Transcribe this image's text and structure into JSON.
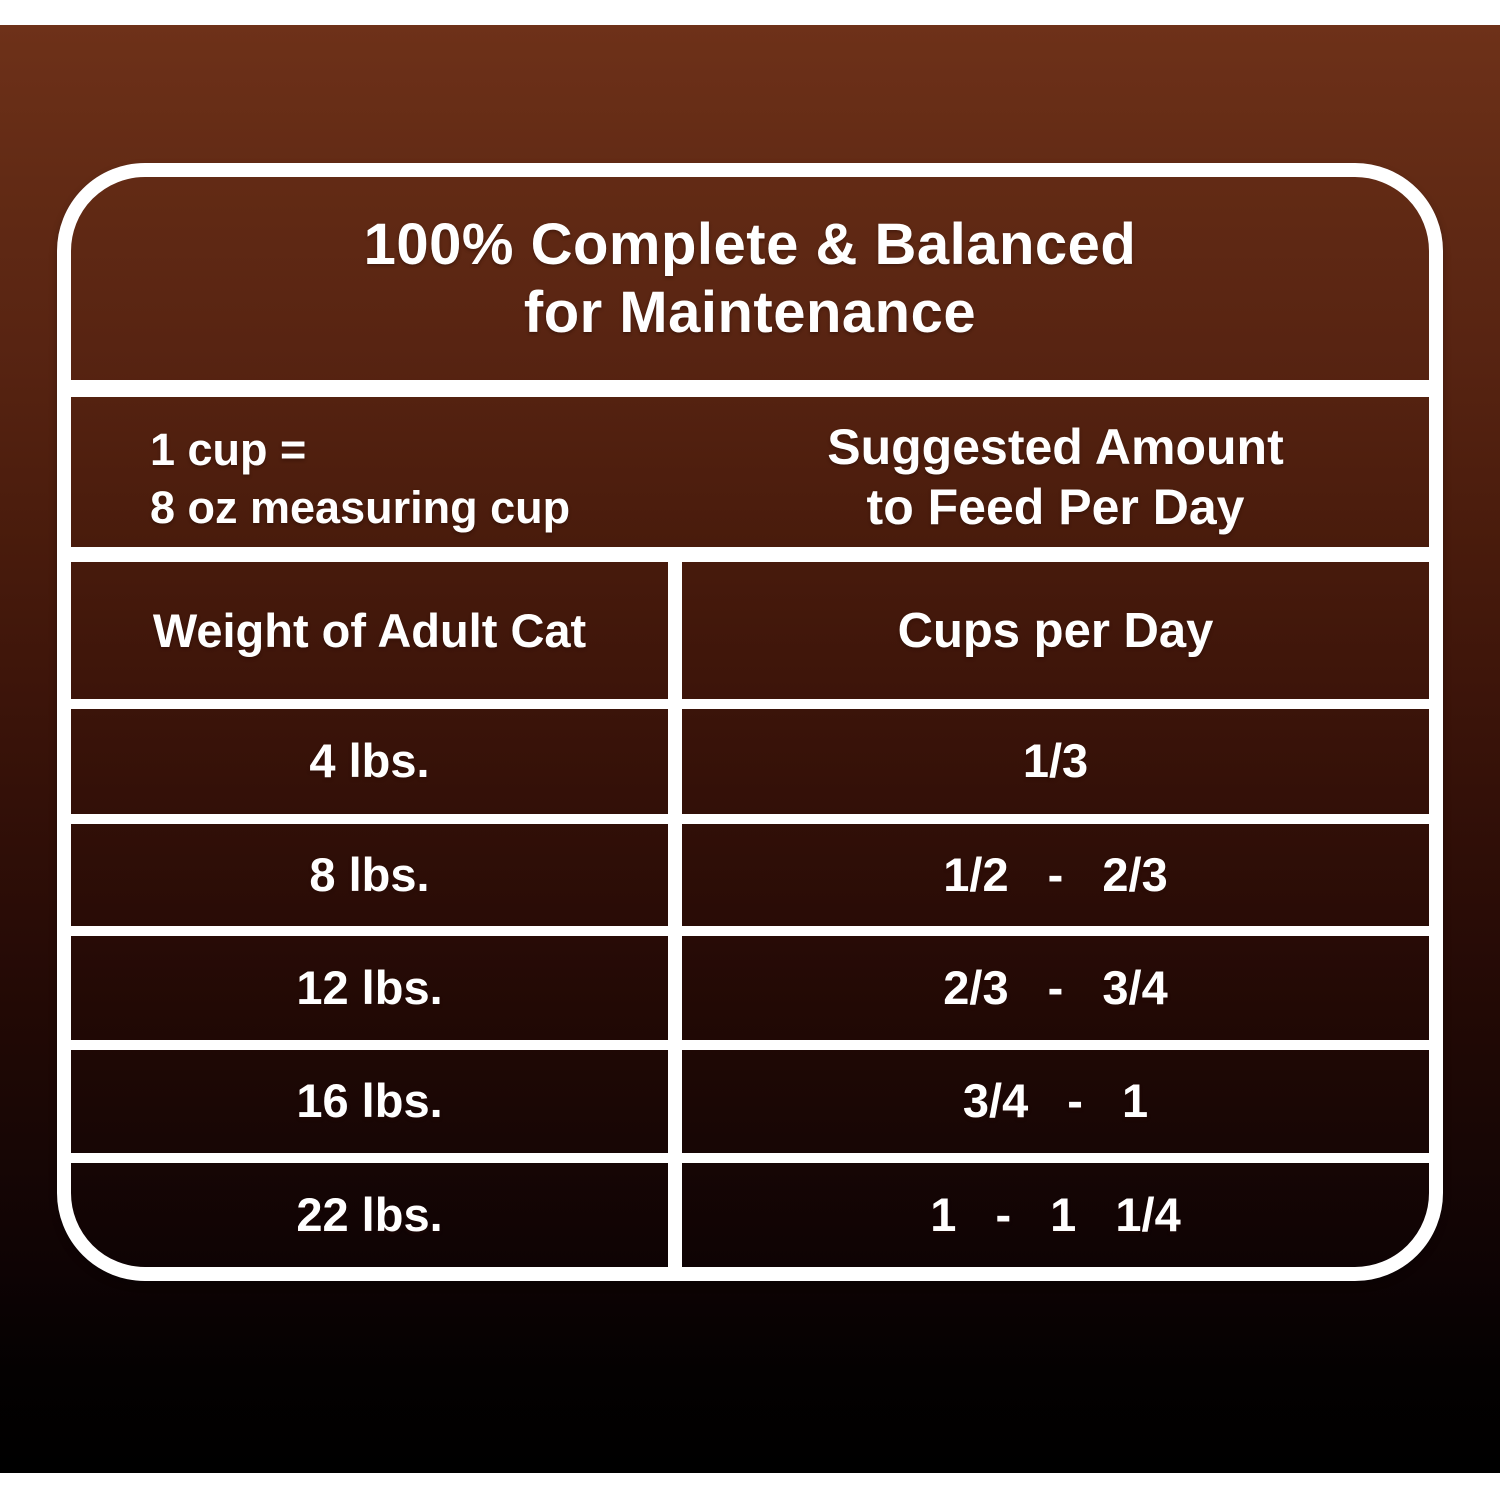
{
  "label": {
    "title": {
      "line1": "100% Complete & Balanced",
      "line2": "for Maintenance"
    },
    "cup_note": {
      "line1": "1 cup =",
      "line2": "8 oz measuring cup"
    },
    "suggested": {
      "line1": "Suggested Amount",
      "line2": "to Feed Per Day"
    },
    "columns": {
      "weight": "Weight of Adult Cat",
      "cups": "Cups per Day"
    },
    "rows": [
      {
        "weight": "4 lbs.",
        "cups": "1/3"
      },
      {
        "weight": "8 lbs.",
        "cups": "1/2 - 2/3"
      },
      {
        "weight": "12 lbs.",
        "cups": "2/3 - 3/4"
      },
      {
        "weight": "16 lbs.",
        "cups": "3/4 - 1"
      },
      {
        "weight": "22 lbs.",
        "cups": "1 - 1 1/4"
      }
    ],
    "colors": {
      "text": "#ffffff",
      "lines": "#ffffff",
      "background_top": "#6e3119",
      "background_bottom": "#000000",
      "letterbox": "#ffffff"
    }
  }
}
